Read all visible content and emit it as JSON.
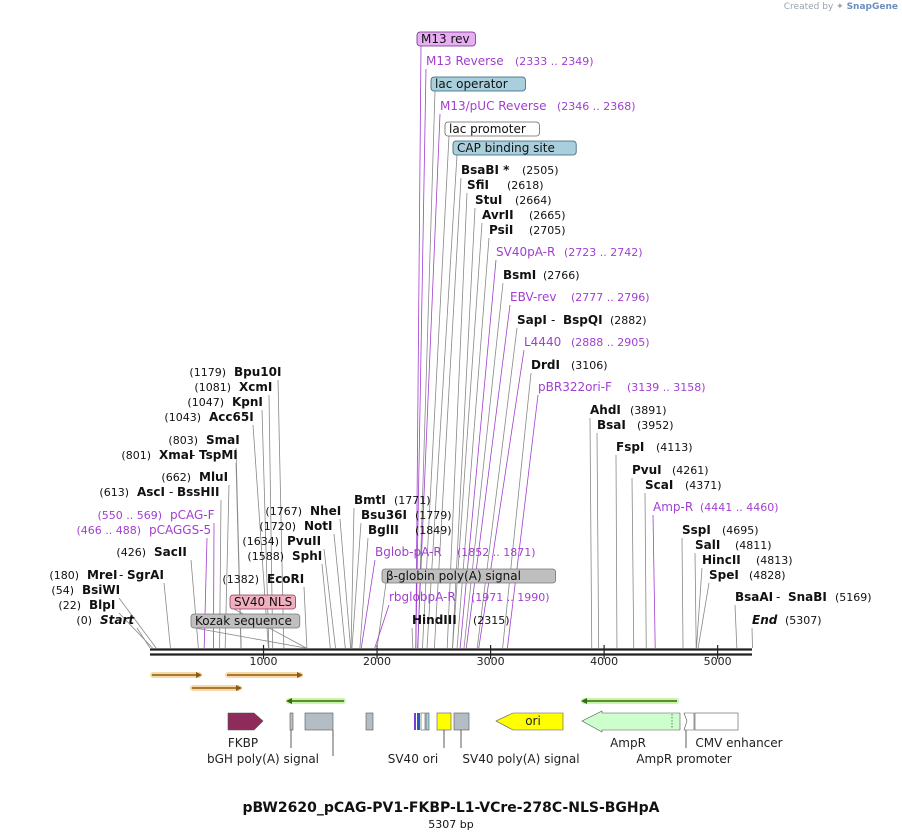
{
  "credit": {
    "prefix": "Created by",
    "brand": "SnapGene"
  },
  "plasmid": {
    "name": "pBW2620_pCAG-PV1-FKBP-L1-VCre-278C-NLS-BGHpA",
    "length_label": "5307 bp",
    "length": 5307
  },
  "ruler": {
    "ticks": [
      1000,
      2000,
      3000,
      4000,
      5000
    ]
  },
  "colors": {
    "enzyme": "#000000",
    "primer": "#a13fd0",
    "feature_box_lilac": "#e8aef2",
    "feature_box_blue": "#a9cfdc",
    "feature_box_gray": "#bfbfbf",
    "feature_box_pink": "#f0b0c0",
    "fkbp": "#8e2b5a",
    "ori": "#ffff00",
    "ampr": "#ccffcc",
    "orf_orange": "#f7a43a",
    "orf_green": "#7fd43c"
  },
  "labels": [
    {
      "pos": 2341,
      "kind": "boxed",
      "text": "M13 rev",
      "box": "lilac"
    },
    {
      "pos": 2341,
      "kind": "primer",
      "name": "M13 Reverse",
      "range": "(2333 .. 2349)"
    },
    {
      "pos": 2360,
      "kind": "boxed",
      "text": "lac operator",
      "box": "blue"
    },
    {
      "pos": 2357,
      "kind": "primer",
      "name": "M13/pUC Reverse",
      "range": "(2346 .. 2368)"
    },
    {
      "pos": 2400,
      "kind": "boxed",
      "text": "lac promoter",
      "box": "white"
    },
    {
      "pos": 2440,
      "kind": "boxed",
      "text": "CAP binding site",
      "box": "blue"
    },
    {
      "pos": 2505,
      "kind": "enzyme",
      "name": "BsaBI *",
      "site": "(2505)"
    },
    {
      "pos": 2618,
      "kind": "enzyme",
      "name": "SfiI",
      "site": "(2618)"
    },
    {
      "pos": 2664,
      "kind": "enzyme",
      "name": "StuI",
      "site": "(2664)"
    },
    {
      "pos": 2665,
      "kind": "enzyme",
      "name": "AvrII",
      "site": "(2665)"
    },
    {
      "pos": 2705,
      "kind": "enzyme",
      "name": "PsiI",
      "site": "(2705)"
    },
    {
      "pos": 2732,
      "kind": "primer",
      "name": "SV40pA-R",
      "range": "(2723 .. 2742)"
    },
    {
      "pos": 2766,
      "kind": "enzyme",
      "name": "BsmI",
      "site": "(2766)"
    },
    {
      "pos": 2786,
      "kind": "primer",
      "name": "EBV-rev",
      "range": "(2777 .. 2796)"
    },
    {
      "pos": 2882,
      "kind": "enzyme",
      "name": "SapI",
      "name2": "BspQI",
      "site": "(2882)"
    },
    {
      "pos": 2896,
      "kind": "primer",
      "name": "L4440",
      "range": "(2888 .. 2905)"
    },
    {
      "pos": 3106,
      "kind": "enzyme",
      "name": "DrdI",
      "site": "(3106)"
    },
    {
      "pos": 3148,
      "kind": "primer",
      "name": "pBR322ori-F",
      "range": "(3139 .. 3158)"
    },
    {
      "pos": 3891,
      "kind": "enzyme",
      "name": "AhdI",
      "site": "(3891)"
    },
    {
      "pos": 3952,
      "kind": "enzyme",
      "name": "BsaI",
      "site": "(3952)"
    },
    {
      "pos": 4113,
      "kind": "enzyme",
      "name": "FspI",
      "site": "(4113)"
    },
    {
      "pos": 4261,
      "kind": "enzyme",
      "name": "PvuI",
      "site": "(4261)"
    },
    {
      "pos": 4371,
      "kind": "enzyme",
      "name": "ScaI",
      "site": "(4371)"
    },
    {
      "pos": 4450,
      "kind": "primer",
      "name": "Amp-R",
      "range": "(4441 .. 4460)"
    },
    {
      "pos": 4695,
      "kind": "enzyme",
      "name": "SspI",
      "site": "(4695)"
    },
    {
      "pos": 4811,
      "kind": "enzyme",
      "name": "SalI",
      "site": "(4811)"
    },
    {
      "pos": 4813,
      "kind": "enzyme",
      "name": "HincII",
      "site": "(4813)"
    },
    {
      "pos": 4828,
      "kind": "enzyme",
      "name": "SpeI",
      "site": "(4828)"
    },
    {
      "pos": 5169,
      "kind": "enzyme",
      "name": "BsaAI",
      "name2": "SnaBI",
      "site": "(5169)"
    },
    {
      "pos": 5307,
      "kind": "end",
      "name": "End",
      "site": "(5307)"
    },
    {
      "pos": 0,
      "kind": "end",
      "name": "Start",
      "site": "(0)"
    },
    {
      "pos": 22,
      "kind": "enzyme",
      "name": "BlpI",
      "site": "(22)"
    },
    {
      "pos": 54,
      "kind": "enzyme",
      "name": "BsiWI",
      "site": "(54)"
    },
    {
      "pos": 180,
      "kind": "enzyme",
      "name": "MreI",
      "name2": "SgrAI",
      "site": "(180)"
    },
    {
      "pos": 426,
      "kind": "enzyme",
      "name": "SacII",
      "site": "(426)"
    },
    {
      "pos": 477,
      "kind": "primer",
      "name": "pCAGGS-5",
      "range": "(466 .. 488)"
    },
    {
      "pos": 559,
      "kind": "primer",
      "name": "pCAG-F",
      "range": "(550 .. 569)"
    },
    {
      "pos": 613,
      "kind": "enzyme",
      "name": "AscI",
      "name2": "BssHII",
      "site": "(613)"
    },
    {
      "pos": 662,
      "kind": "enzyme",
      "name": "MluI",
      "site": "(662)"
    },
    {
      "pos": 801,
      "kind": "enzyme",
      "name": "XmaI",
      "name2": "TspMI",
      "site": "(801)"
    },
    {
      "pos": 803,
      "kind": "enzyme",
      "name": "SmaI",
      "site": "(803)"
    },
    {
      "pos": 1043,
      "kind": "enzyme",
      "name": "Acc65I",
      "site": "(1043)"
    },
    {
      "pos": 1047,
      "kind": "enzyme",
      "name": "KpnI",
      "site": "(1047)"
    },
    {
      "pos": 1081,
      "kind": "enzyme",
      "name": "XcmI",
      "site": "(1081)"
    },
    {
      "pos": 1179,
      "kind": "enzyme",
      "name": "Bpu10I",
      "site": "(1179)"
    },
    {
      "pos": 1370,
      "kind": "boxed",
      "text": "Kozak sequence",
      "box": "gray"
    },
    {
      "pos": 1376,
      "kind": "boxed",
      "text": "SV40 NLS",
      "box": "pink"
    },
    {
      "pos": 1382,
      "kind": "enzyme",
      "name": "EcoRI",
      "site": "(1382)"
    },
    {
      "pos": 1588,
      "kind": "enzyme",
      "name": "SphI",
      "site": "(1588)"
    },
    {
      "pos": 1634,
      "kind": "enzyme",
      "name": "PvuII",
      "site": "(1634)"
    },
    {
      "pos": 1720,
      "kind": "enzyme",
      "name": "NotI",
      "site": "(1720)"
    },
    {
      "pos": 1767,
      "kind": "enzyme",
      "name": "NheI",
      "site": "(1767)"
    },
    {
      "pos": 1771,
      "kind": "enzyme",
      "name": "BmtI",
      "site": "(1771)"
    },
    {
      "pos": 1779,
      "kind": "enzyme",
      "name": "Bsu36I",
      "site": "(1779)"
    },
    {
      "pos": 1849,
      "kind": "enzyme",
      "name": "BglII",
      "site": "(1849)"
    },
    {
      "pos": 1861,
      "kind": "primer",
      "name": "Bglob-pA-R",
      "range": "(1852 .. 1871)"
    },
    {
      "pos": 2000,
      "kind": "boxed",
      "text": "β-globin poly(A) signal",
      "box": "gray"
    },
    {
      "pos": 1980,
      "kind": "primer",
      "name": "rbglobpA-R",
      "range": "(1971 .. 1990)"
    },
    {
      "pos": 2315,
      "kind": "enzyme",
      "name": "HindIII",
      "site": "(2315)"
    }
  ],
  "features": {
    "fkbp_label": "FKBP",
    "bgh_label": "bGH poly(A) signal",
    "sv40ori_label": "SV40 ori",
    "sv40pa_label": "SV40 poly(A) signal",
    "ori_label": "ori",
    "ampr_label": "AmpR",
    "amprp_label": "AmpR promoter",
    "cmv_label": "CMV enhancer"
  }
}
